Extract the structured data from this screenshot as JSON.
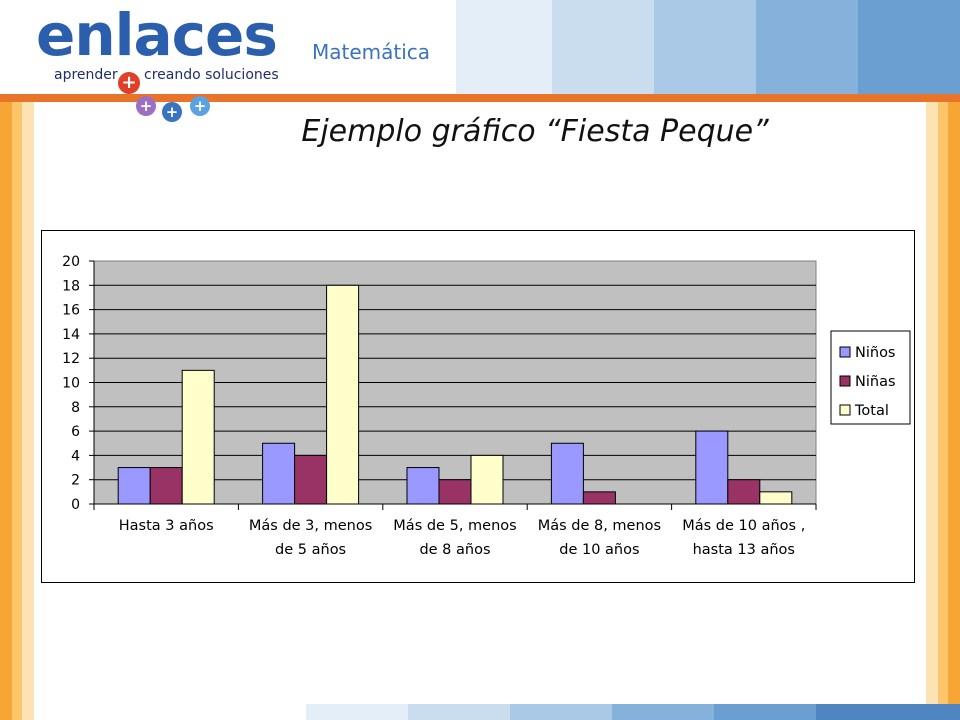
{
  "branding": {
    "logo_word": "enlaces",
    "logo_subtitle": "Matemática",
    "tagline_a": "aprender",
    "tagline_b": "creando soluciones",
    "colors": {
      "orange": "#e8742a",
      "blue": "#2b5fae",
      "light_blue": "#3a73c0"
    }
  },
  "title": "Ejemplo gráfico “Fiesta Peque”",
  "chart_data": {
    "type": "bar",
    "categories": [
      [
        "Hasta 3 años"
      ],
      [
        "Más de 3, menos",
        "de 5 años"
      ],
      [
        "Más de 5, menos",
        "de 8 años"
      ],
      [
        "Más de 8, menos",
        "de 10 años"
      ],
      [
        "Más de 10 años ,",
        "hasta 13 años"
      ]
    ],
    "series": [
      {
        "name": "Niños",
        "color": "#9999ff",
        "values": [
          3,
          5,
          3,
          5,
          6
        ]
      },
      {
        "name": "Niñas",
        "color": "#993366",
        "values": [
          3,
          4,
          2,
          1,
          2
        ]
      },
      {
        "name": "Total",
        "color": "#ffffcc",
        "values": [
          11,
          18,
          4,
          0,
          1
        ]
      }
    ],
    "ylim": [
      0,
      20
    ],
    "yticks": [
      "0",
      "2",
      "4",
      "6",
      "8",
      "10",
      "12",
      "14",
      "16",
      "18",
      "20"
    ],
    "grid": true,
    "plot_background": "#c0c0c0",
    "legend_position": "right"
  }
}
